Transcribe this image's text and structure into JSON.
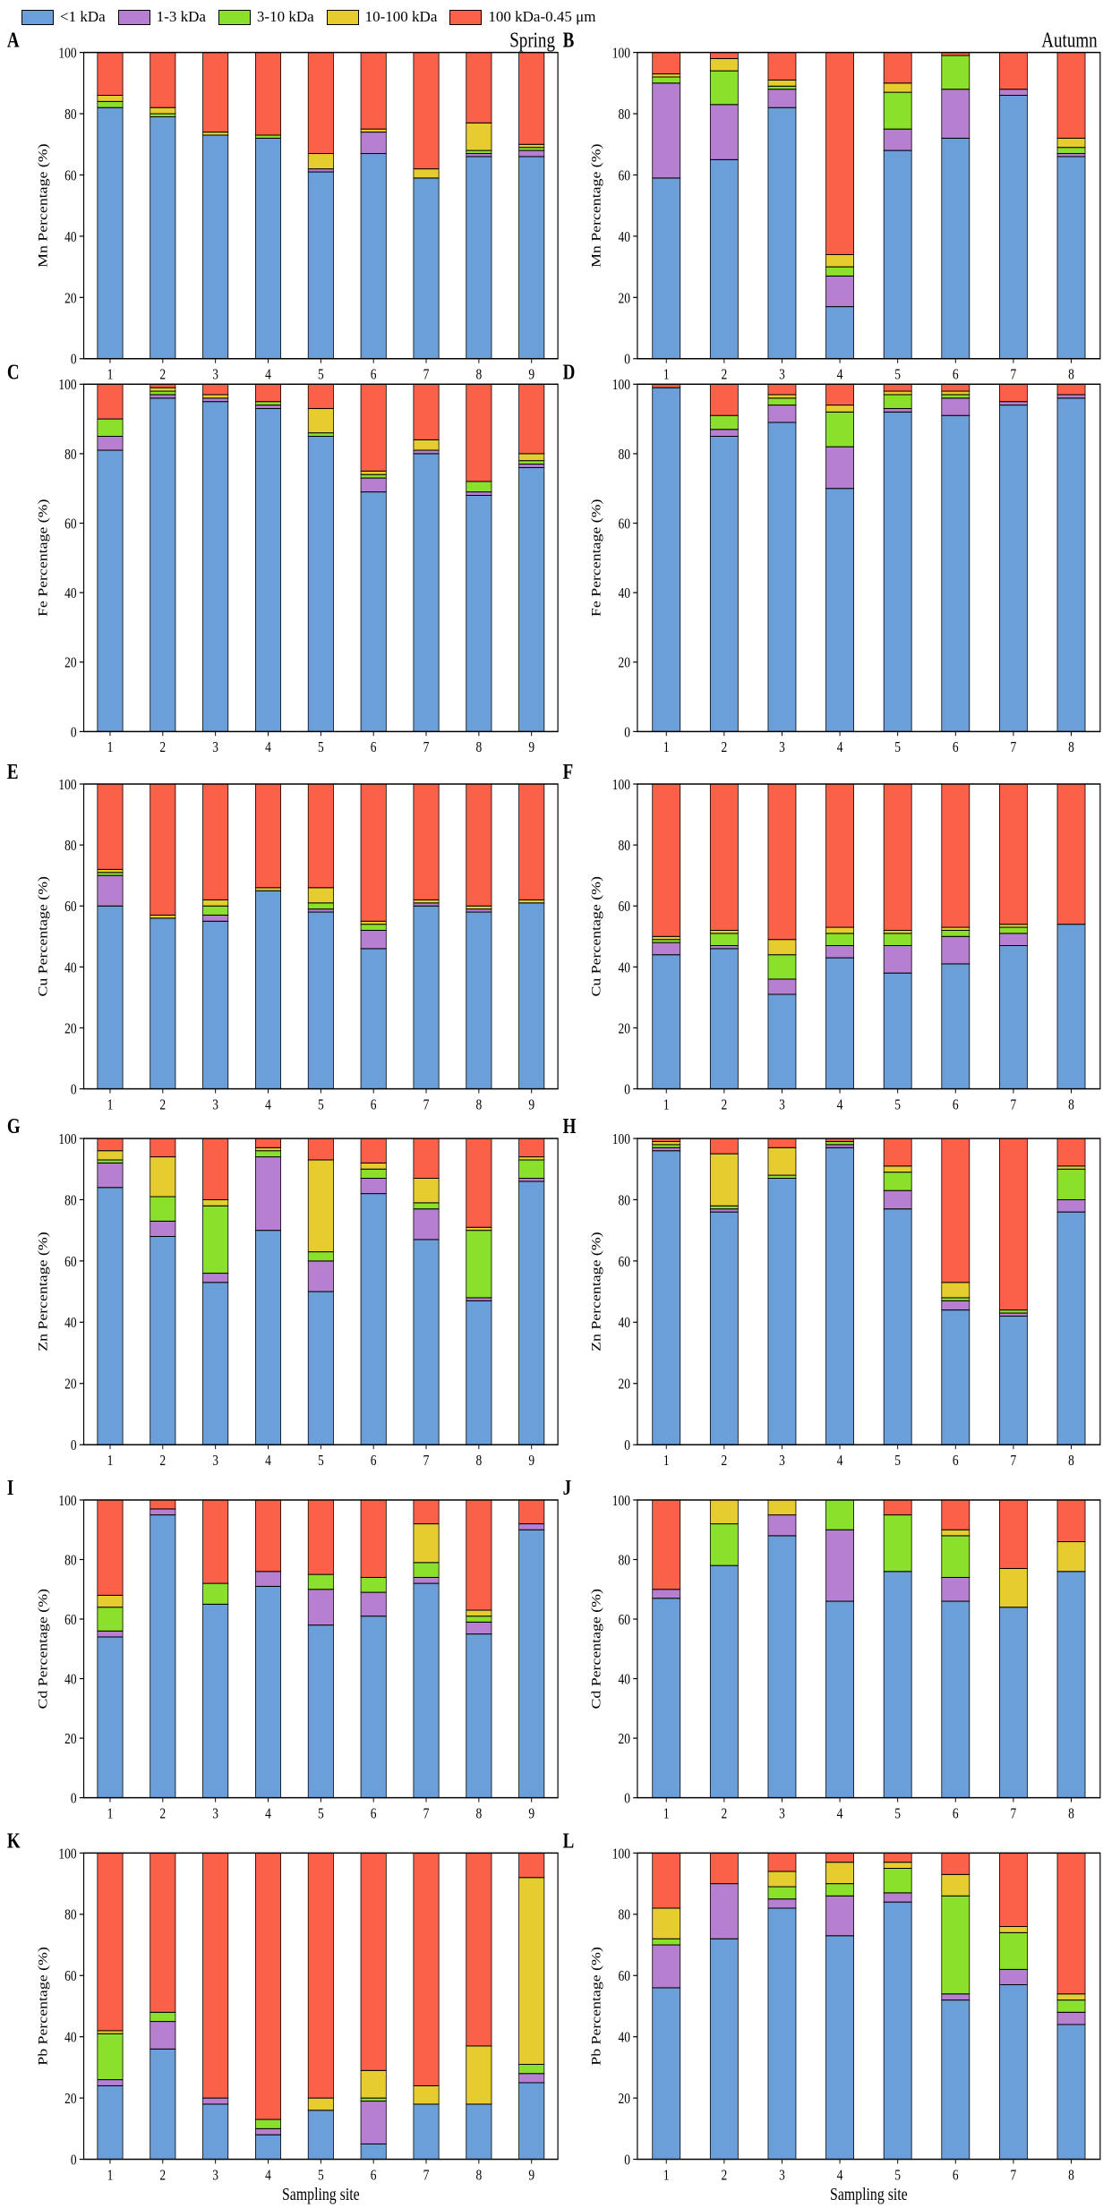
{
  "legend": {
    "items": [
      {
        "label": "<1 kDa",
        "color": "#6a9fd9"
      },
      {
        "label": "1-3 kDa",
        "color": "#b67fcf"
      },
      {
        "label": "3-10 kDa",
        "color": "#8ae02a"
      },
      {
        "label": "10-100 kDa",
        "color": "#e6cc2e"
      },
      {
        "label": "100 kDa-0.45 μm",
        "color": "#fa6148"
      }
    ]
  },
  "x_axis_label": "Sampling site",
  "chart_data": [
    {
      "panel": "A",
      "type": "bar",
      "stacked": true,
      "title": "Spring",
      "ylabel": "Mn Percentage (%)",
      "ylim": [
        0,
        100
      ],
      "yticks": [
        0,
        20,
        40,
        60,
        80,
        100
      ],
      "categories": [
        "1",
        "2",
        "3",
        "4",
        "5",
        "6",
        "7",
        "8",
        "9"
      ],
      "series": [
        {
          "name": "<1 kDa",
          "values": [
            82,
            79,
            73,
            72,
            61,
            67,
            59,
            66,
            66
          ]
        },
        {
          "name": "1-3 kDa",
          "values": [
            0,
            0,
            0,
            0,
            1,
            7,
            0,
            1,
            2
          ]
        },
        {
          "name": "3-10 kDa",
          "values": [
            2,
            1,
            0,
            1,
            0,
            0,
            0,
            1,
            1
          ]
        },
        {
          "name": "10-100 kDa",
          "values": [
            2,
            2,
            1,
            0,
            5,
            1,
            3,
            9,
            1
          ]
        },
        {
          "name": "100 kDa-0.45 μm",
          "values": [
            14,
            18,
            26,
            27,
            33,
            25,
            38,
            23,
            30
          ]
        }
      ]
    },
    {
      "panel": "B",
      "type": "bar",
      "stacked": true,
      "title": "Autumn",
      "ylabel": "Mn Percentage (%)",
      "ylim": [
        0,
        100
      ],
      "yticks": [
        0,
        20,
        40,
        60,
        80,
        100
      ],
      "categories": [
        "1",
        "2",
        "3",
        "4",
        "5",
        "6",
        "7",
        "8"
      ],
      "series": [
        {
          "name": "<1 kDa",
          "values": [
            59,
            65,
            82,
            17,
            68,
            72,
            86,
            66
          ]
        },
        {
          "name": "1-3 kDa",
          "values": [
            31,
            18,
            6,
            10,
            7,
            16,
            2,
            1
          ]
        },
        {
          "name": "3-10 kDa",
          "values": [
            2,
            11,
            1,
            3,
            12,
            11,
            0,
            2
          ]
        },
        {
          "name": "10-100 kDa",
          "values": [
            1,
            4,
            2,
            4,
            3,
            0,
            0,
            3
          ]
        },
        {
          "name": "100 kDa-0.45 μm",
          "values": [
            7,
            2,
            9,
            66,
            10,
            1,
            12,
            28
          ]
        }
      ]
    },
    {
      "panel": "C",
      "type": "bar",
      "stacked": true,
      "ylabel": "Fe Percentage (%)",
      "ylim": [
        0,
        100
      ],
      "yticks": [
        0,
        20,
        40,
        60,
        80,
        100
      ],
      "categories": [
        "1",
        "2",
        "3",
        "4",
        "5",
        "6",
        "7",
        "8",
        "9"
      ],
      "series": [
        {
          "name": "<1 kDa",
          "values": [
            81,
            96,
            95,
            93,
            85,
            69,
            80,
            68,
            76
          ]
        },
        {
          "name": "1-3 kDa",
          "values": [
            4,
            1,
            1,
            1,
            0,
            4,
            1,
            1,
            1
          ]
        },
        {
          "name": "3-10 kDa",
          "values": [
            5,
            1,
            0,
            1,
            1,
            1,
            0,
            3,
            1
          ]
        },
        {
          "name": "10-100 kDa",
          "values": [
            0,
            1,
            1,
            0,
            7,
            1,
            3,
            0,
            2
          ]
        },
        {
          "name": "100 kDa-0.45 μm",
          "values": [
            10,
            1,
            3,
            5,
            7,
            25,
            16,
            28,
            20
          ]
        }
      ]
    },
    {
      "panel": "D",
      "type": "bar",
      "stacked": true,
      "ylabel": "Fe Percentage (%)",
      "ylim": [
        0,
        100
      ],
      "yticks": [
        0,
        20,
        40,
        60,
        80,
        100
      ],
      "categories": [
        "1",
        "2",
        "3",
        "4",
        "5",
        "6",
        "7",
        "8"
      ],
      "series": [
        {
          "name": "<1 kDa",
          "values": [
            99,
            85,
            89,
            70,
            92,
            91,
            94,
            96
          ]
        },
        {
          "name": "1-3 kDa",
          "values": [
            0,
            2,
            5,
            12,
            1,
            5,
            1,
            1
          ]
        },
        {
          "name": "3-10 kDa",
          "values": [
            0,
            4,
            2,
            10,
            4,
            1,
            0,
            0
          ]
        },
        {
          "name": "10-100 kDa",
          "values": [
            0,
            0,
            1,
            2,
            1,
            1,
            0,
            0
          ]
        },
        {
          "name": "100 kDa-0.45 μm",
          "values": [
            1,
            9,
            3,
            6,
            2,
            2,
            5,
            3
          ]
        }
      ]
    },
    {
      "panel": "E",
      "type": "bar",
      "stacked": true,
      "ylabel": "Cu Percentage (%)",
      "ylim": [
        0,
        100
      ],
      "yticks": [
        0,
        20,
        40,
        60,
        80,
        100
      ],
      "categories": [
        "1",
        "2",
        "3",
        "4",
        "5",
        "6",
        "7",
        "8",
        "9"
      ],
      "series": [
        {
          "name": "<1 kDa",
          "values": [
            60,
            56,
            55,
            65,
            58,
            46,
            60,
            58,
            61
          ]
        },
        {
          "name": "1-3 kDa",
          "values": [
            10,
            0,
            2,
            0,
            1,
            6,
            1,
            1,
            0
          ]
        },
        {
          "name": "3-10 kDa",
          "values": [
            1,
            0,
            3,
            0,
            2,
            2,
            0,
            0,
            0
          ]
        },
        {
          "name": "10-100 kDa",
          "values": [
            1,
            1,
            2,
            1,
            5,
            1,
            1,
            1,
            1
          ]
        },
        {
          "name": "100 kDa-0.45 μm",
          "values": [
            28,
            43,
            38,
            34,
            34,
            45,
            38,
            40,
            38
          ]
        }
      ]
    },
    {
      "panel": "F",
      "type": "bar",
      "stacked": true,
      "ylabel": "Cu Percentage (%)",
      "ylim": [
        0,
        100
      ],
      "yticks": [
        0,
        20,
        40,
        60,
        80,
        100
      ],
      "categories": [
        "1",
        "2",
        "3",
        "4",
        "5",
        "6",
        "7",
        "8"
      ],
      "series": [
        {
          "name": "<1 kDa",
          "values": [
            44,
            46,
            31,
            43,
            38,
            41,
            47,
            54
          ]
        },
        {
          "name": "1-3 kDa",
          "values": [
            4,
            1,
            5,
            4,
            9,
            9,
            4,
            0
          ]
        },
        {
          "name": "3-10 kDa",
          "values": [
            1,
            4,
            8,
            4,
            4,
            2,
            2,
            0
          ]
        },
        {
          "name": "10-100 kDa",
          "values": [
            1,
            1,
            5,
            2,
            1,
            1,
            1,
            0
          ]
        },
        {
          "name": "100 kDa-0.45 μm",
          "values": [
            50,
            48,
            51,
            47,
            48,
            47,
            46,
            46
          ]
        }
      ]
    },
    {
      "panel": "G",
      "type": "bar",
      "stacked": true,
      "ylabel": "Zn Percentage (%)",
      "ylim": [
        0,
        100
      ],
      "yticks": [
        0,
        20,
        40,
        60,
        80,
        100
      ],
      "categories": [
        "1",
        "2",
        "3",
        "4",
        "5",
        "6",
        "7",
        "8",
        "9"
      ],
      "series": [
        {
          "name": "<1 kDa",
          "values": [
            84,
            68,
            53,
            70,
            50,
            82,
            67,
            47,
            86
          ]
        },
        {
          "name": "1-3 kDa",
          "values": [
            8,
            5,
            3,
            24,
            10,
            5,
            10,
            1,
            1
          ]
        },
        {
          "name": "3-10 kDa",
          "values": [
            1,
            8,
            22,
            2,
            3,
            3,
            2,
            22,
            6
          ]
        },
        {
          "name": "10-100 kDa",
          "values": [
            3,
            13,
            2,
            1,
            30,
            2,
            8,
            1,
            1
          ]
        },
        {
          "name": "100 kDa-0.45 μm",
          "values": [
            4,
            6,
            20,
            3,
            7,
            8,
            13,
            29,
            6
          ]
        }
      ]
    },
    {
      "panel": "H",
      "type": "bar",
      "stacked": true,
      "ylabel": "Zn Percentage (%)",
      "ylim": [
        0,
        100
      ],
      "yticks": [
        0,
        20,
        40,
        60,
        80,
        100
      ],
      "categories": [
        "1",
        "2",
        "3",
        "4",
        "5",
        "6",
        "7",
        "8"
      ],
      "series": [
        {
          "name": "<1 kDa",
          "values": [
            96,
            76,
            87,
            97,
            77,
            44,
            42,
            76
          ]
        },
        {
          "name": "1-3 kDa",
          "values": [
            1,
            1,
            0,
            1,
            6,
            3,
            1,
            4
          ]
        },
        {
          "name": "3-10 kDa",
          "values": [
            1,
            1,
            1,
            1,
            6,
            1,
            1,
            10
          ]
        },
        {
          "name": "10-100 kDa",
          "values": [
            1,
            17,
            9,
            0,
            2,
            5,
            0,
            1
          ]
        },
        {
          "name": "100 kDa-0.45 μm",
          "values": [
            1,
            5,
            3,
            1,
            9,
            47,
            56,
            9
          ]
        }
      ]
    },
    {
      "panel": "I",
      "type": "bar",
      "stacked": true,
      "ylabel": "Cd Percentage (%)",
      "ylim": [
        0,
        100
      ],
      "yticks": [
        0,
        20,
        40,
        60,
        80,
        100
      ],
      "categories": [
        "1",
        "2",
        "3",
        "4",
        "5",
        "6",
        "7",
        "8",
        "9"
      ],
      "series": [
        {
          "name": "<1 kDa",
          "values": [
            54,
            95,
            65,
            71,
            58,
            61,
            72,
            55,
            90
          ]
        },
        {
          "name": "1-3 kDa",
          "values": [
            2,
            2,
            0,
            5,
            12,
            8,
            2,
            4,
            2
          ]
        },
        {
          "name": "3-10 kDa",
          "values": [
            8,
            0,
            7,
            0,
            5,
            5,
            5,
            2,
            0
          ]
        },
        {
          "name": "10-100 kDa",
          "values": [
            4,
            0,
            0,
            0,
            0,
            0,
            13,
            2,
            0
          ]
        },
        {
          "name": "100 kDa-0.45 μm",
          "values": [
            32,
            3,
            28,
            24,
            25,
            26,
            8,
            37,
            8
          ]
        }
      ]
    },
    {
      "panel": "J",
      "type": "bar",
      "stacked": true,
      "ylabel": "Cd Percentage (%)",
      "ylim": [
        0,
        100
      ],
      "yticks": [
        0,
        20,
        40,
        60,
        80,
        100
      ],
      "categories": [
        "1",
        "2",
        "3",
        "4",
        "5",
        "6",
        "7",
        "8"
      ],
      "series": [
        {
          "name": "<1 kDa",
          "values": [
            67,
            78,
            88,
            66,
            76,
            66,
            64,
            76
          ]
        },
        {
          "name": "1-3 kDa",
          "values": [
            3,
            0,
            7,
            24,
            0,
            8,
            0,
            0
          ]
        },
        {
          "name": "3-10 kDa",
          "values": [
            0,
            14,
            0,
            10,
            19,
            14,
            0,
            0
          ]
        },
        {
          "name": "10-100 kDa",
          "values": [
            0,
            8,
            5,
            0,
            0,
            2,
            13,
            10
          ]
        },
        {
          "name": "100 kDa-0.45 μm",
          "values": [
            30,
            0,
            0,
            0,
            5,
            10,
            23,
            14
          ]
        }
      ]
    },
    {
      "panel": "K",
      "type": "bar",
      "stacked": true,
      "ylabel": "Pb Percentage (%)",
      "ylim": [
        0,
        100
      ],
      "yticks": [
        0,
        20,
        40,
        60,
        80,
        100
      ],
      "categories": [
        "1",
        "2",
        "3",
        "4",
        "5",
        "6",
        "7",
        "8",
        "9"
      ],
      "series": [
        {
          "name": "<1 kDa",
          "values": [
            24,
            36,
            18,
            8,
            16,
            5,
            18,
            18,
            25
          ]
        },
        {
          "name": "1-3 kDa",
          "values": [
            2,
            9,
            2,
            2,
            0,
            14,
            0,
            0,
            3
          ]
        },
        {
          "name": "3-10 kDa",
          "values": [
            15,
            3,
            0,
            3,
            0,
            1,
            0,
            0,
            3
          ]
        },
        {
          "name": "10-100 kDa",
          "values": [
            1,
            0,
            0,
            0,
            4,
            9,
            6,
            19,
            61
          ]
        },
        {
          "name": "100 kDa-0.45 μm",
          "values": [
            58,
            52,
            80,
            87,
            80,
            71,
            76,
            63,
            8
          ]
        }
      ]
    },
    {
      "panel": "L",
      "type": "bar",
      "stacked": true,
      "ylabel": "Pb Percentage (%)",
      "ylim": [
        0,
        100
      ],
      "yticks": [
        0,
        20,
        40,
        60,
        80,
        100
      ],
      "categories": [
        "1",
        "2",
        "3",
        "4",
        "5",
        "6",
        "7",
        "8"
      ],
      "series": [
        {
          "name": "<1 kDa",
          "values": [
            56,
            72,
            82,
            73,
            84,
            52,
            57,
            44
          ]
        },
        {
          "name": "1-3 kDa",
          "values": [
            14,
            18,
            3,
            13,
            3,
            2,
            5,
            4
          ]
        },
        {
          "name": "3-10 kDa",
          "values": [
            2,
            0,
            4,
            4,
            8,
            32,
            12,
            4
          ]
        },
        {
          "name": "10-100 kDa",
          "values": [
            10,
            0,
            5,
            7,
            2,
            7,
            2,
            2
          ]
        },
        {
          "name": "100 kDa-0.45 μm",
          "values": [
            18,
            10,
            6,
            3,
            3,
            7,
            24,
            46
          ]
        }
      ]
    }
  ]
}
